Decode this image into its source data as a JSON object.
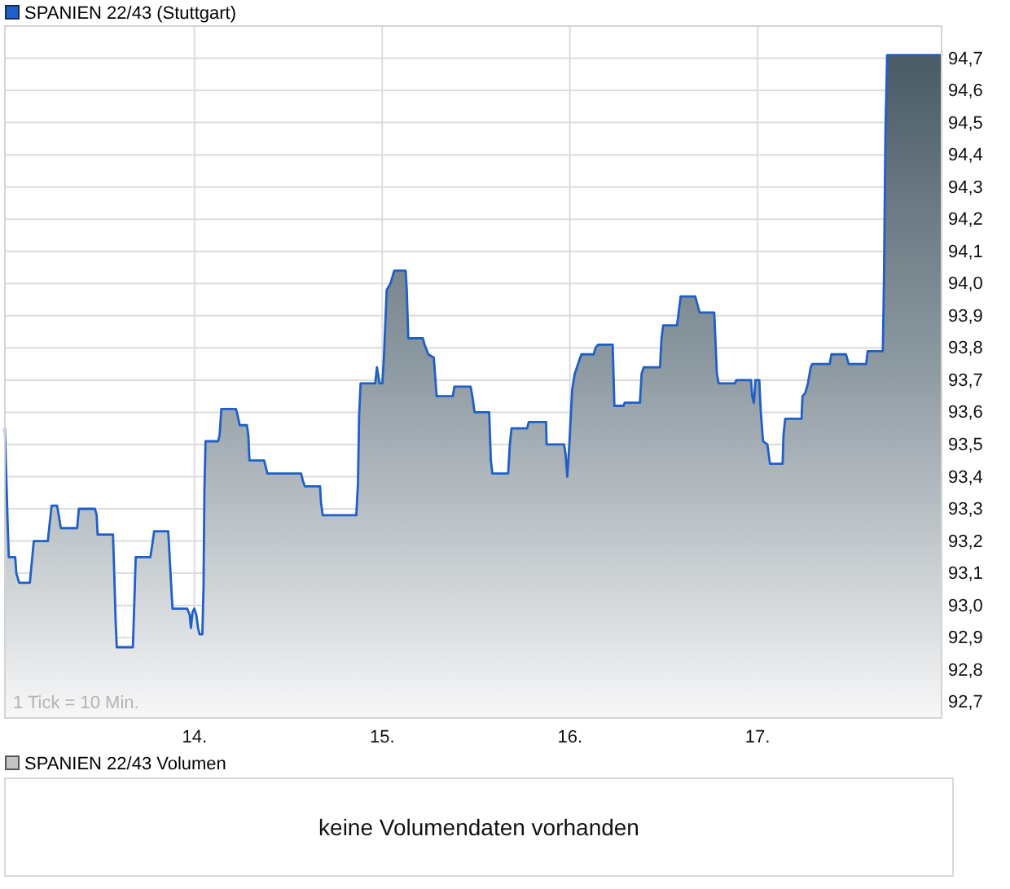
{
  "chart_data": [
    {
      "type": "area",
      "legend": "top left",
      "grid": true,
      "xlim": [
        12.99,
        17.98
      ],
      "xticks": [
        {
          "value": 14,
          "label": "14."
        },
        {
          "value": 15,
          "label": "15."
        },
        {
          "value": 16,
          "label": "16."
        },
        {
          "value": 17,
          "label": "17."
        }
      ],
      "ylim": [
        92.65,
        94.8
      ],
      "yticks": [
        {
          "value": 92.7,
          "label": "92,7"
        },
        {
          "value": 92.8,
          "label": "92,8"
        },
        {
          "value": 92.9,
          "label": "92,9"
        },
        {
          "value": 93.0,
          "label": "93,0"
        },
        {
          "value": 93.1,
          "label": "93,1"
        },
        {
          "value": 93.2,
          "label": "93,2"
        },
        {
          "value": 93.3,
          "label": "93,3"
        },
        {
          "value": 93.4,
          "label": "93,4"
        },
        {
          "value": 93.5,
          "label": "93,5"
        },
        {
          "value": 93.6,
          "label": "93,6"
        },
        {
          "value": 93.7,
          "label": "93,7"
        },
        {
          "value": 93.8,
          "label": "93,8"
        },
        {
          "value": 93.9,
          "label": "93,9"
        },
        {
          "value": 94.0,
          "label": "94,0"
        },
        {
          "value": 94.1,
          "label": "94,1"
        },
        {
          "value": 94.2,
          "label": "94,2"
        },
        {
          "value": 94.3,
          "label": "94,3"
        },
        {
          "value": 94.4,
          "label": "94,4"
        },
        {
          "value": 94.5,
          "label": "94,5"
        },
        {
          "value": 94.6,
          "label": "94,6"
        },
        {
          "value": 94.7,
          "label": "94,7"
        }
      ],
      "annotations": [
        "1 Tick = 10 Min."
      ],
      "x": [
        12.99,
        12.995,
        13.005,
        13.011,
        13.045,
        13.051,
        13.066,
        13.123,
        13.144,
        13.219,
        13.224,
        13.239,
        13.268,
        13.277,
        13.288,
        13.375,
        13.384,
        13.47,
        13.479,
        13.484,
        13.566,
        13.571,
        13.58,
        13.586,
        13.672,
        13.678,
        13.687,
        13.765,
        13.773,
        13.785,
        13.86,
        13.866,
        13.877,
        13.883,
        13.961,
        13.975,
        13.981,
        13.99,
        13.999,
        14.01,
        14.019,
        14.027,
        14.042,
        14.048,
        14.053,
        14.059,
        14.126,
        14.134,
        14.143,
        14.221,
        14.23,
        14.241,
        14.279,
        14.287,
        14.293,
        14.371,
        14.38,
        14.388,
        14.568,
        14.576,
        14.588,
        14.669,
        14.674,
        14.683,
        14.862,
        14.871,
        14.877,
        14.885,
        14.963,
        14.972,
        14.986,
        15.001,
        15.009,
        15.024,
        15.044,
        15.064,
        15.125,
        15.131,
        15.139,
        15.217,
        15.226,
        15.246,
        15.275,
        15.29,
        15.376,
        15.385,
        15.471,
        15.483,
        15.492,
        15.57,
        15.579,
        15.587,
        15.671,
        15.68,
        15.689,
        15.772,
        15.781,
        15.873,
        15.876,
        15.969,
        15.977,
        15.986,
        15.997,
        16.012,
        16.026,
        16.061,
        16.127,
        16.136,
        16.15,
        16.228,
        16.237,
        16.286,
        16.292,
        16.373,
        16.382,
        16.393,
        16.48,
        16.488,
        16.497,
        16.57,
        16.575,
        16.59,
        16.668,
        16.677,
        16.691,
        16.769,
        16.783,
        16.792,
        16.879,
        16.887,
        16.965,
        16.971,
        16.98,
        16.988,
        17.009,
        17.017,
        17.029,
        17.052,
        17.066,
        17.133,
        17.138,
        17.147,
        17.234,
        17.239,
        17.254,
        17.268,
        17.283,
        17.291,
        17.384,
        17.393,
        17.471,
        17.485,
        17.578,
        17.586,
        17.667,
        17.673,
        17.681,
        17.69,
        17.98
      ],
      "series": [
        {
          "name": "SPANIEN 22/43 (Stuttgart)",
          "color": "#1f5fc8",
          "values": [
            93.55,
            93.45,
            93.25,
            93.15,
            93.15,
            93.1,
            93.07,
            93.07,
            93.2,
            93.2,
            93.23,
            93.31,
            93.31,
            93.28,
            93.24,
            93.24,
            93.3,
            93.3,
            93.28,
            93.22,
            93.22,
            93.13,
            92.95,
            92.87,
            92.87,
            92.98,
            93.15,
            93.15,
            93.18,
            93.23,
            93.23,
            93.17,
            93.05,
            92.99,
            92.99,
            92.97,
            92.93,
            92.98,
            92.99,
            92.97,
            92.93,
            92.91,
            92.91,
            93.05,
            93.36,
            93.51,
            93.51,
            93.53,
            93.61,
            93.61,
            93.59,
            93.56,
            93.56,
            93.53,
            93.45,
            93.45,
            93.43,
            93.41,
            93.41,
            93.39,
            93.37,
            93.37,
            93.32,
            93.28,
            93.28,
            93.38,
            93.59,
            93.69,
            93.69,
            93.74,
            93.69,
            93.69,
            93.77,
            93.98,
            94.0,
            94.04,
            94.04,
            93.98,
            93.83,
            93.83,
            93.81,
            93.78,
            93.77,
            93.65,
            93.65,
            93.68,
            93.68,
            93.64,
            93.6,
            93.6,
            93.45,
            93.41,
            93.41,
            93.5,
            93.55,
            93.55,
            93.57,
            93.57,
            93.5,
            93.5,
            93.47,
            93.4,
            93.5,
            93.67,
            93.72,
            93.78,
            93.78,
            93.8,
            93.81,
            93.81,
            93.62,
            93.62,
            93.63,
            93.63,
            93.72,
            93.74,
            93.74,
            93.83,
            93.87,
            93.87,
            93.89,
            93.96,
            93.96,
            93.94,
            93.91,
            93.91,
            93.72,
            93.69,
            93.69,
            93.7,
            93.7,
            93.65,
            93.63,
            93.7,
            93.7,
            93.6,
            93.51,
            93.5,
            93.44,
            93.44,
            93.53,
            93.58,
            93.58,
            93.65,
            93.66,
            93.69,
            93.74,
            93.75,
            93.75,
            93.78,
            93.78,
            93.75,
            93.75,
            93.79,
            93.79,
            94.01,
            94.47,
            94.71,
            94.71
          ]
        }
      ]
    },
    {
      "type": "other",
      "title": "SPANIEN 22/43 Volumen",
      "annotations": [
        "keine Volumendaten vorhanden"
      ]
    }
  ]
}
